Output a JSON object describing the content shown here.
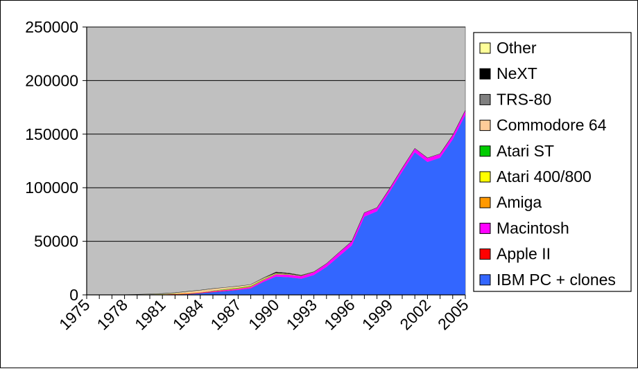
{
  "chart_data": {
    "type": "area",
    "stacked": true,
    "title": "",
    "xlabel": "",
    "ylabel": "",
    "ylim": [
      0,
      250000
    ],
    "y_ticks": [
      "0",
      "50000",
      "100000",
      "150000",
      "200000",
      "250000"
    ],
    "x_tick_labels": [
      "1975",
      "1978",
      "1981",
      "1984",
      "1987",
      "1990",
      "1993",
      "1996",
      "1999",
      "2002",
      "2005"
    ],
    "grid": true,
    "legend_position": "right",
    "plot_background": "#C0C0C0",
    "x": [
      1975,
      1976,
      1977,
      1978,
      1979,
      1980,
      1981,
      1982,
      1983,
      1984,
      1985,
      1986,
      1987,
      1988,
      1989,
      1990,
      1991,
      1992,
      1993,
      1994,
      1995,
      1996,
      1997,
      1998,
      1999,
      2000,
      2001,
      2002,
      2003,
      2004,
      2005
    ],
    "series": [
      {
        "name": "IBM PC + clones",
        "color": "#3366FF",
        "values": [
          0,
          0,
          0,
          0,
          0,
          0,
          100,
          300,
          700,
          1500,
          2500,
          3500,
          4500,
          6000,
          12000,
          17000,
          16500,
          15000,
          18500,
          26000,
          36000,
          46000,
          73000,
          78000,
          96000,
          115000,
          133000,
          124000,
          128000,
          145000,
          168000
        ]
      },
      {
        "name": "Apple II",
        "color": "#FF0000",
        "values": [
          0,
          0,
          0,
          0,
          100,
          200,
          300,
          400,
          500,
          500,
          400,
          300,
          200,
          100,
          100,
          50,
          0,
          0,
          0,
          0,
          0,
          0,
          0,
          0,
          0,
          0,
          0,
          0,
          0,
          0,
          0
        ]
      },
      {
        "name": "Macintosh",
        "color": "#FF00FF",
        "values": [
          0,
          0,
          0,
          0,
          0,
          0,
          0,
          0,
          0,
          200,
          500,
          700,
          900,
          1200,
          1500,
          2000,
          2200,
          2400,
          2600,
          3000,
          3500,
          3700,
          3500,
          3200,
          3000,
          3200,
          3500,
          3600,
          3500,
          3800,
          4000
        ]
      },
      {
        "name": "Amiga",
        "color": "#FF9900",
        "values": [
          0,
          0,
          0,
          0,
          0,
          0,
          0,
          0,
          0,
          0,
          300,
          400,
          500,
          500,
          500,
          400,
          300,
          200,
          100,
          0,
          0,
          0,
          0,
          0,
          0,
          0,
          0,
          0,
          0,
          0,
          0
        ]
      },
      {
        "name": "Atari 400/800",
        "color": "#FFFF00",
        "values": [
          0,
          0,
          0,
          0,
          50,
          150,
          250,
          300,
          300,
          200,
          100,
          50,
          0,
          0,
          0,
          0,
          0,
          0,
          0,
          0,
          0,
          0,
          0,
          0,
          0,
          0,
          0,
          0,
          0,
          0,
          0
        ]
      },
      {
        "name": "Atari ST",
        "color": "#00CC00",
        "values": [
          0,
          0,
          0,
          0,
          0,
          0,
          0,
          0,
          0,
          0,
          200,
          400,
          500,
          500,
          400,
          300,
          200,
          100,
          0,
          0,
          0,
          0,
          0,
          0,
          0,
          0,
          0,
          0,
          0,
          0,
          0
        ]
      },
      {
        "name": "Commodore 64",
        "color": "#FFCC99",
        "values": [
          0,
          0,
          0,
          0,
          0,
          0,
          0,
          300,
          1200,
          1500,
          1500,
          1300,
          1200,
          1000,
          800,
          600,
          300,
          100,
          0,
          0,
          0,
          0,
          0,
          0,
          0,
          0,
          0,
          0,
          0,
          0,
          0
        ]
      },
      {
        "name": "TRS-80",
        "color": "#808080",
        "values": [
          0,
          0,
          50,
          150,
          200,
          250,
          300,
          300,
          200,
          100,
          50,
          0,
          0,
          0,
          0,
          0,
          0,
          0,
          0,
          0,
          0,
          0,
          0,
          0,
          0,
          0,
          0,
          0,
          0,
          0,
          0
        ]
      },
      {
        "name": "NeXT",
        "color": "#000000",
        "values": [
          0,
          0,
          0,
          0,
          0,
          0,
          0,
          0,
          0,
          0,
          0,
          0,
          0,
          0,
          200,
          700,
          600,
          300,
          100,
          0,
          0,
          0,
          0,
          0,
          0,
          0,
          0,
          0,
          0,
          0,
          0
        ]
      },
      {
        "name": "Other",
        "color": "#FFFF99",
        "values": [
          0,
          0,
          0,
          0,
          100,
          200,
          300,
          400,
          400,
          400,
          300,
          300,
          300,
          300,
          300,
          200,
          200,
          200,
          200,
          200,
          200,
          200,
          200,
          200,
          200,
          200,
          200,
          200,
          200,
          200,
          200
        ]
      }
    ]
  }
}
